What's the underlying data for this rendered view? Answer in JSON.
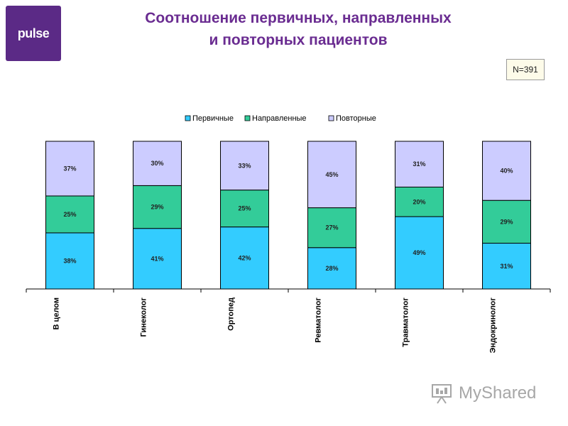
{
  "logo": {
    "text": "pulse"
  },
  "title": {
    "line1": "Соотношение первичных, направленных",
    "line2": "и повторных пациентов"
  },
  "sample_note": "N=391",
  "watermark": {
    "text": "MyShared"
  },
  "chart_data": {
    "type": "bar",
    "stacked": true,
    "percent_stacked": true,
    "categories": [
      "В целом",
      "Гинеколог",
      "Ортопед",
      "Ревматолог",
      "Травматолог",
      "Эндокринолог"
    ],
    "series": [
      {
        "name": "Первичные",
        "color": "#33ccff",
        "values": [
          38,
          41,
          42,
          28,
          49,
          31
        ],
        "labels": [
          "38%",
          "41%",
          "42%",
          "28%",
          "49%",
          "31%"
        ]
      },
      {
        "name": "Направленные",
        "color": "#33cc99",
        "values": [
          25,
          29,
          25,
          27,
          20,
          29
        ],
        "labels": [
          "25%",
          "29%",
          "25%",
          "27%",
          "20%",
          "29%"
        ]
      },
      {
        "name": "Повторные",
        "color": "#ccccff",
        "values": [
          37,
          30,
          33,
          45,
          31,
          40
        ],
        "labels": [
          "37%",
          "30%",
          "33%",
          "45%",
          "31%",
          "40%"
        ]
      }
    ],
    "ylim": [
      0,
      100
    ],
    "legend_position": "top",
    "grid": false
  }
}
